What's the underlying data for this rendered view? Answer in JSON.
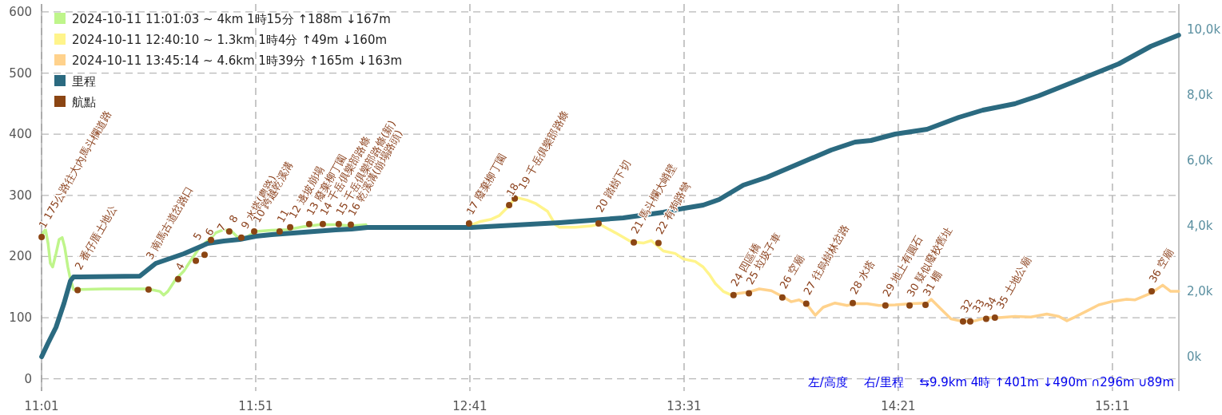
{
  "chart_data": {
    "type": "line",
    "grid": true,
    "legend": "top left",
    "xlim": [
      11.0167,
      15.4417
    ],
    "xticks": [
      {
        "value": 11.0167,
        "label": "11:01"
      },
      {
        "value": 11.85,
        "label": "11:51"
      },
      {
        "value": 12.6833,
        "label": "12:41"
      },
      {
        "value": 13.5167,
        "label": "13:31"
      },
      {
        "value": 14.35,
        "label": "14:21"
      },
      {
        "value": 15.1833,
        "label": "15:11"
      }
    ],
    "ylim": [
      -20,
      613
    ],
    "yticks": [
      0,
      100,
      200,
      300,
      400,
      500,
      600
    ],
    "y2lim": [
      -1049,
      10780
    ],
    "y2ticks": [
      {
        "value": 0,
        "label": "0k"
      },
      {
        "value": 2000,
        "label": "2,0k"
      },
      {
        "value": 4000,
        "label": "4,0k"
      },
      {
        "value": 6000,
        "label": "6,0k"
      },
      {
        "value": 8000,
        "label": "8,0k"
      },
      {
        "value": 10000,
        "label": "10,0k"
      }
    ],
    "series": [
      {
        "name": "2024-10-11 11:01:03 ~ 4km 1時15分 ↑188m ↓167m",
        "color": "#bff58b",
        "x": [
          11.017,
          11.026,
          11.032,
          11.042,
          11.051,
          11.06,
          11.073,
          11.085,
          11.097,
          11.107,
          11.119,
          11.129,
          11.141,
          11.166,
          11.259,
          11.353,
          11.43,
          11.477,
          11.492,
          11.508,
          11.539,
          11.57,
          11.601,
          11.632,
          11.67,
          11.695,
          11.726,
          11.757,
          11.788,
          11.819,
          11.85,
          11.912,
          11.974,
          12.037,
          12.099,
          12.161,
          12.223,
          12.279
        ],
        "values": [
          233,
          241,
          244,
          222,
          189,
          183,
          205,
          228,
          231,
          215,
          183,
          163,
          146,
          146,
          147,
          147,
          147,
          143,
          137,
          143,
          163,
          176,
          196,
          215,
          228,
          239,
          244,
          241,
          228,
          233,
          241,
          243,
          244,
          249,
          252,
          252,
          250,
          252
        ]
      },
      {
        "name": "2024-10-11 12:40:10 ~ 1.3km 1時4分 ↑49m ↓160m",
        "color": "#fff48b",
        "x": [
          12.69,
          12.721,
          12.767,
          12.798,
          12.836,
          12.861,
          12.907,
          12.938,
          12.985,
          13.016,
          13.032,
          13.094,
          13.156,
          13.187,
          13.249,
          13.311,
          13.358,
          13.389,
          13.436,
          13.482,
          13.514,
          13.56,
          13.591,
          13.616,
          13.638,
          13.669,
          13.7
        ],
        "values": [
          252,
          257,
          261,
          267,
          283,
          297,
          292,
          287,
          274,
          252,
          248,
          248,
          250,
          253,
          239,
          224,
          222,
          226,
          209,
          205,
          196,
          192,
          183,
          170,
          156,
          143,
          137
        ]
      },
      {
        "name": "2024-10-11 13:45:14 ~ 4.6km 1時39分 ↑165m ↓163m",
        "color": "#ffd28c",
        "x": [
          13.7,
          13.731,
          13.769,
          13.809,
          13.856,
          13.902,
          13.933,
          13.964,
          13.996,
          14.027,
          14.058,
          14.104,
          14.151,
          14.182,
          14.229,
          14.275,
          14.338,
          14.4,
          14.462,
          14.478,
          14.509,
          14.555,
          14.602,
          14.649,
          14.695,
          14.742,
          14.804,
          14.866,
          14.928,
          14.975,
          15.006,
          15.037,
          15.084,
          15.13,
          15.177,
          15.239,
          15.27,
          15.333,
          15.379,
          15.41,
          15.441
        ],
        "values": [
          137,
          140,
          142,
          147,
          144,
          134,
          126,
          129,
          121,
          104,
          117,
          124,
          120,
          123,
          123,
          120,
          121,
          123,
          124,
          130,
          117,
          98,
          94,
          95,
          100,
          100,
          102,
          101,
          106,
          102,
          95,
          101,
          111,
          121,
          126,
          130,
          129,
          140,
          153,
          143,
          143
        ]
      },
      {
        "name": "里程",
        "color": "#2b6a80",
        "axis": "y2",
        "x": [
          11.017,
          11.042,
          11.073,
          11.104,
          11.129,
          11.141,
          11.166,
          11.399,
          11.461,
          11.57,
          11.663,
          11.726,
          11.788,
          11.85,
          11.912,
          12.037,
          12.161,
          12.223,
          12.285,
          12.69,
          13.032,
          13.28,
          13.436,
          13.498,
          13.591,
          13.653,
          13.747,
          13.84,
          13.964,
          14.089,
          14.182,
          14.244,
          14.338,
          14.462,
          14.586,
          14.679,
          14.804,
          14.897,
          15.053,
          15.208,
          15.333,
          15.441
        ],
        "values": [
          0,
          415,
          902,
          1634,
          2317,
          2439,
          2439,
          2463,
          2854,
          3146,
          3463,
          3537,
          3585,
          3683,
          3732,
          3805,
          3878,
          3902,
          3951,
          3951,
          4098,
          4244,
          4415,
          4512,
          4634,
          4805,
          5244,
          5488,
          5902,
          6317,
          6561,
          6610,
          6805,
          6951,
          7317,
          7537,
          7732,
          7976,
          8463,
          8951,
          9488,
          9829
        ]
      },
      {
        "name": "航點",
        "color": "#8b4513",
        "type": "scatter",
        "marker": "circle",
        "x": [
          11.017,
          11.157,
          11.433,
          11.548,
          11.617,
          11.651,
          11.676,
          11.747,
          11.794,
          11.844,
          11.943,
          11.984,
          12.058,
          12.111,
          12.173,
          12.22,
          12.68,
          12.836,
          12.858,
          13.184,
          13.321,
          13.417,
          13.709,
          13.769,
          13.899,
          13.992,
          14.173,
          14.3,
          14.394,
          14.456,
          14.602,
          14.63,
          14.692,
          14.726,
          15.336
        ],
        "values": [
          232,
          145,
          146,
          163,
          193,
          203,
          227,
          241,
          231,
          241,
          241,
          248,
          253,
          253,
          253,
          252,
          254,
          284,
          295,
          254,
          223,
          222,
          137,
          140,
          133,
          123,
          124,
          120,
          120,
          121,
          94,
          94,
          98,
          100,
          143
        ]
      }
    ],
    "annotations": [
      {
        "text": "1 175公路往大內馬斗欄道路",
        "x": 11.017,
        "y": 232
      },
      {
        "text": "2 番仔厝土地公",
        "x": 11.157,
        "y": 145
      },
      {
        "text": "3 南馬古道岔路口",
        "x": 11.433,
        "y": 146
      },
      {
        "text": "4",
        "x": 11.548,
        "y": 163
      },
      {
        "text": "5",
        "x": 11.617,
        "y": 193
      },
      {
        "text": "6",
        "x": 11.651,
        "y": 203
      },
      {
        "text": "7",
        "x": 11.676,
        "y": 227
      },
      {
        "text": "8",
        "x": 11.747,
        "y": 241
      },
      {
        "text": "9 水塔(農路)",
        "x": 11.794,
        "y": 231
      },
      {
        "text": "10 跨越乾溪溝",
        "x": 11.844,
        "y": 241
      },
      {
        "text": "11",
        "x": 11.943,
        "y": 241
      },
      {
        "text": "12 邊坡崩塌",
        "x": 11.984,
        "y": 248
      },
      {
        "text": "13 廢棄柳丁園",
        "x": 12.058,
        "y": 253
      },
      {
        "text": "14 千岳俱樂部路條",
        "x": 12.111,
        "y": 253
      },
      {
        "text": "15 千岳俱樂部路條(新)",
        "x": 12.173,
        "y": 253
      },
      {
        "text": "16 乾溪溝(崩塌路頭)",
        "x": 12.22,
        "y": 252
      },
      {
        "text": "17 廢棄柳丁園",
        "x": 12.68,
        "y": 254
      },
      {
        "text": "18",
        "x": 12.836,
        "y": 284
      },
      {
        "text": "19 千岳俱樂部路條",
        "x": 12.858,
        "y": 295
      },
      {
        "text": "20 踏樹下切",
        "x": 13.184,
        "y": 254
      },
      {
        "text": "21 馬斗欄大峭壁",
        "x": 13.321,
        "y": 223
      },
      {
        "text": "22 有狗路彎",
        "x": 13.417,
        "y": 222
      },
      {
        "text": "24 四區橋",
        "x": 13.709,
        "y": 137
      },
      {
        "text": "25 垃圾子車",
        "x": 13.769,
        "y": 140
      },
      {
        "text": "26 空廟",
        "x": 13.899,
        "y": 133
      },
      {
        "text": "27 往烏樹林岔路",
        "x": 13.992,
        "y": 123
      },
      {
        "text": "28 水塔",
        "x": 14.173,
        "y": 124
      },
      {
        "text": "29 地上有圓石",
        "x": 14.3,
        "y": 120
      },
      {
        "text": "30 疑似廢校舊址",
        "x": 14.394,
        "y": 120
      },
      {
        "text": "31 棚",
        "x": 14.456,
        "y": 121
      },
      {
        "text": "32",
        "x": 14.602,
        "y": 94
      },
      {
        "text": "33",
        "x": 14.63,
        "y": 94
      },
      {
        "text": "34",
        "x": 14.692,
        "y": 98
      },
      {
        "text": "35 土地公廟",
        "x": 14.726,
        "y": 100
      },
      {
        "text": "36 空廟",
        "x": 15.336,
        "y": 143
      },
      "左/高度　 右/里程　 ⇆9.9km 4時 ↑401m ↓490m ∩296m ∪89m"
    ]
  }
}
